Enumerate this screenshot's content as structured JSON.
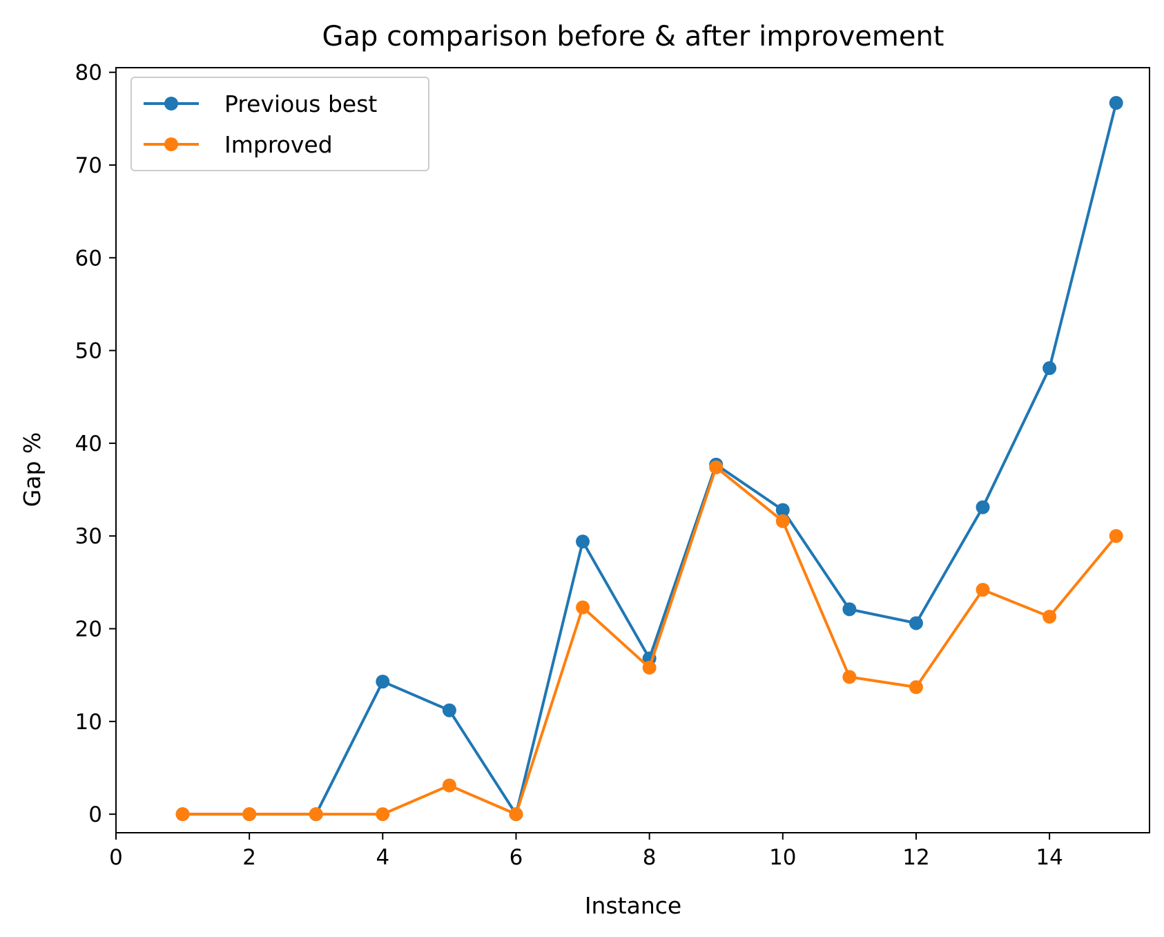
{
  "chart_data": {
    "type": "line",
    "title": "Gap comparison before & after improvement",
    "xlabel": "Instance",
    "ylabel": "Gap %",
    "xlim": [
      0,
      15.5
    ],
    "ylim": [
      -2,
      80.5
    ],
    "xticks": [
      0,
      2,
      4,
      6,
      8,
      10,
      12,
      14
    ],
    "yticks": [
      0,
      10,
      20,
      30,
      40,
      50,
      60,
      70,
      80
    ],
    "grid": false,
    "legend": "top-left",
    "x": [
      1,
      2,
      3,
      4,
      5,
      6,
      7,
      8,
      9,
      10,
      11,
      12,
      13,
      14,
      15
    ],
    "series": [
      {
        "name": "Previous best",
        "color": "#1f77b4",
        "values": [
          0,
          0,
          0,
          14.3,
          11.2,
          0,
          29.4,
          16.8,
          37.7,
          32.8,
          22.1,
          20.6,
          33.1,
          48.1,
          76.7
        ]
      },
      {
        "name": "Improved",
        "color": "#ff7f0e",
        "values": [
          0,
          0,
          0,
          0,
          3.1,
          0,
          22.3,
          15.8,
          37.4,
          31.6,
          14.8,
          13.7,
          24.2,
          21.3,
          30.0
        ]
      }
    ]
  }
}
